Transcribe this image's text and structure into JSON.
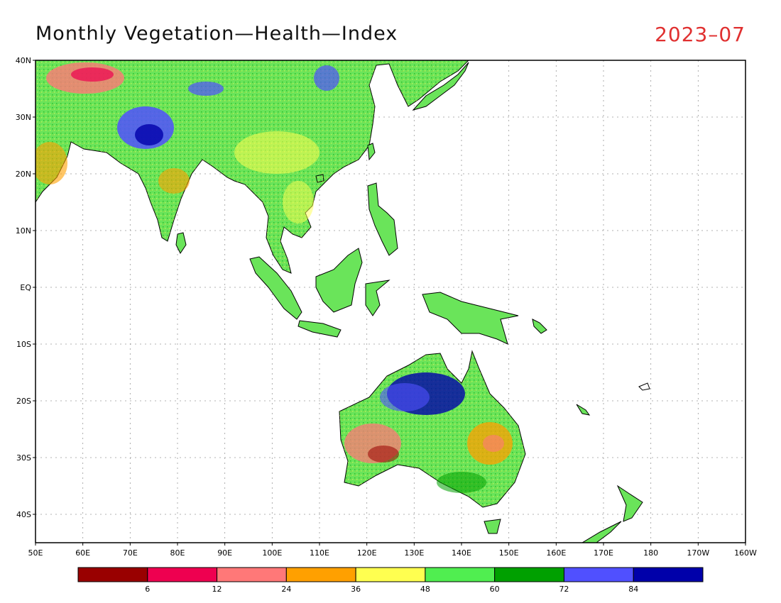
{
  "map": {
    "title": "Monthly Vegetation—Health—Index",
    "date": "2023–07",
    "date_color": "#e03030",
    "lat_labels": [
      "40N",
      "30N",
      "20N",
      "10N",
      "EQ",
      "10S",
      "20S",
      "30S",
      "40S"
    ],
    "lon_labels": [
      "50E",
      "60E",
      "70E",
      "80E",
      "90E",
      "100E",
      "110E",
      "120E",
      "130E",
      "140E",
      "150E",
      "160E",
      "170E",
      "180",
      "170W",
      "160W"
    ],
    "land_outline_color": "#000000",
    "gridline_style": "dotted"
  },
  "legend": {
    "colors": [
      "#990000",
      "#ee0050",
      "#ff7878",
      "#ffa000",
      "#ffff50",
      "#50ee50",
      "#00a000",
      "#5050ff",
      "#0000aa"
    ],
    "labels": [
      "6",
      "12",
      "24",
      "36",
      "48",
      "60",
      "72",
      "84"
    ]
  }
}
